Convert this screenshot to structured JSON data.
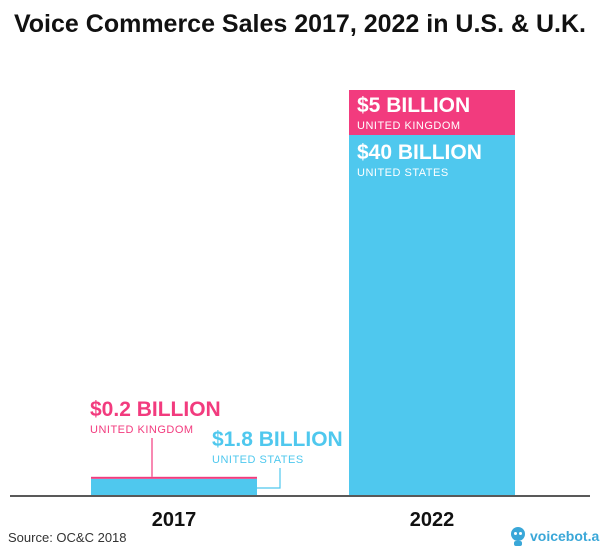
{
  "chart_data": {
    "type": "bar",
    "stacked": true,
    "title": "Voice Commerce Sales 2017, 2022 in U.S. & U.K.",
    "categories": [
      "2017",
      "2022"
    ],
    "series": [
      {
        "name": "UNITED STATES",
        "color": "#4fc8ee",
        "values": [
          1.8,
          40
        ],
        "labels": [
          "$1.8 BILLION",
          "$40 BILLION"
        ]
      },
      {
        "name": "UNITED KINGDOM",
        "color": "#f23b7e",
        "values": [
          0.2,
          5
        ],
        "labels": [
          "$0.2 BILLION",
          "$5 BILLION"
        ]
      }
    ],
    "ylim": [
      0,
      45
    ],
    "grid": false
  },
  "source": "Source: OC&C 2018",
  "logo": {
    "text": "voicebot.ai",
    "icon": "robot-icon"
  }
}
